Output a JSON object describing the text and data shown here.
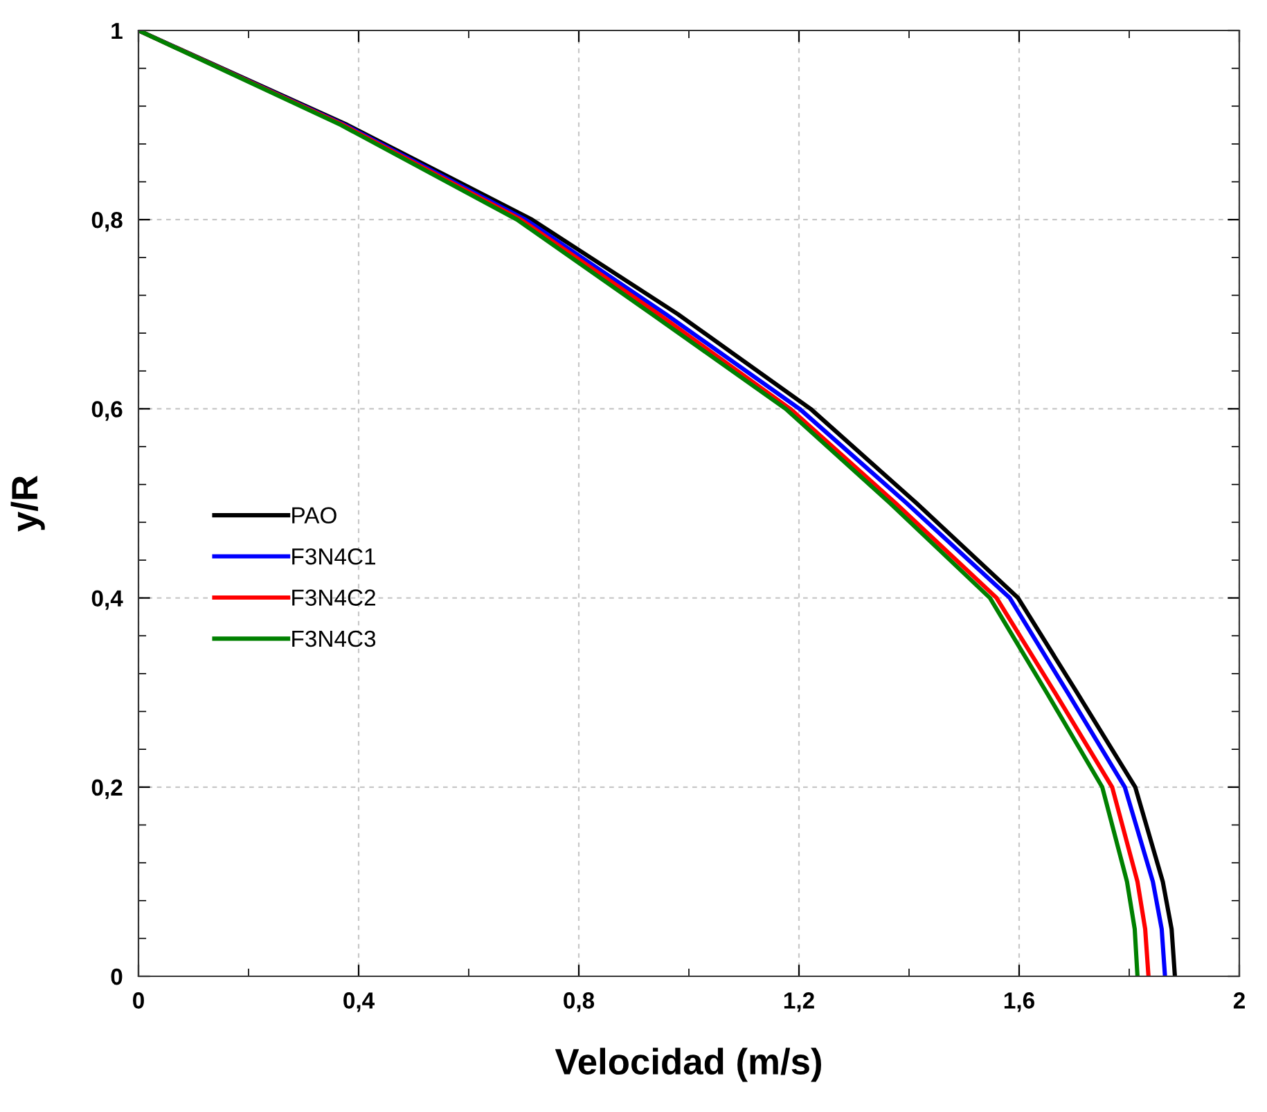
{
  "chart_data": {
    "type": "line",
    "xlabel": "Velocidad (m/s)",
    "ylabel": "y/R",
    "xlim": [
      0,
      2
    ],
    "ylim": [
      0,
      1
    ],
    "xticks": [
      {
        "value": 0,
        "label": "0"
      },
      {
        "value": 0.2,
        "label": null
      },
      {
        "value": 0.4,
        "label": "0,4"
      },
      {
        "value": 0.6,
        "label": null
      },
      {
        "value": 0.8,
        "label": "0,8"
      },
      {
        "value": 1.0,
        "label": null
      },
      {
        "value": 1.2,
        "label": "1,2"
      },
      {
        "value": 1.4,
        "label": null
      },
      {
        "value": 1.6,
        "label": "1,6"
      },
      {
        "value": 1.8,
        "label": null
      },
      {
        "value": 2,
        "label": "2"
      }
    ],
    "yticks": [
      {
        "value": 0,
        "label": "0"
      },
      {
        "value": 0.04,
        "label": null
      },
      {
        "value": 0.08,
        "label": null
      },
      {
        "value": 0.12,
        "label": null
      },
      {
        "value": 0.16,
        "label": null
      },
      {
        "value": 0.2,
        "label": "0,2"
      },
      {
        "value": 0.24,
        "label": null
      },
      {
        "value": 0.28,
        "label": null
      },
      {
        "value": 0.32,
        "label": null
      },
      {
        "value": 0.36,
        "label": null
      },
      {
        "value": 0.4,
        "label": "0,4"
      },
      {
        "value": 0.44,
        "label": null
      },
      {
        "value": 0.48,
        "label": null
      },
      {
        "value": 0.52,
        "label": null
      },
      {
        "value": 0.56,
        "label": null
      },
      {
        "value": 0.6,
        "label": "0,6"
      },
      {
        "value": 0.64,
        "label": null
      },
      {
        "value": 0.68,
        "label": null
      },
      {
        "value": 0.72,
        "label": null
      },
      {
        "value": 0.76,
        "label": null
      },
      {
        "value": 0.8,
        "label": "0,8"
      },
      {
        "value": 0.84,
        "label": null
      },
      {
        "value": 0.88,
        "label": null
      },
      {
        "value": 0.92,
        "label": null
      },
      {
        "value": 0.96,
        "label": null
      },
      {
        "value": 1,
        "label": "1"
      }
    ],
    "grid": true,
    "legend": "left",
    "marker": "none",
    "line_style": "solid",
    "series": [
      {
        "name": "PAO",
        "color": "#000000",
        "x": [
          0,
          0.38,
          0.715,
          0.98,
          1.221,
          1.414,
          1.598,
          1.705,
          1.811,
          1.861,
          1.877,
          1.883
        ],
        "values": [
          1,
          0.9,
          0.8,
          0.7,
          0.6,
          0.5,
          0.4,
          0.3,
          0.2,
          0.1,
          0.05,
          0
        ]
      },
      {
        "name": "F3N4C1",
        "color": "#0000ff",
        "x": [
          0,
          0.375,
          0.703,
          0.958,
          1.201,
          1.396,
          1.583,
          1.688,
          1.792,
          1.843,
          1.859,
          1.865
        ],
        "values": [
          1,
          0.9,
          0.8,
          0.7,
          0.6,
          0.5,
          0.4,
          0.3,
          0.2,
          0.1,
          0.05,
          0
        ]
      },
      {
        "name": "F3N4C2",
        "color": "#ff0000",
        "x": [
          0,
          0.372,
          0.695,
          0.945,
          1.184,
          1.376,
          1.559,
          1.665,
          1.769,
          1.815,
          1.829,
          1.835
        ],
        "values": [
          1,
          0.9,
          0.8,
          0.7,
          0.6,
          0.5,
          0.4,
          0.3,
          0.2,
          0.1,
          0.05,
          0
        ]
      },
      {
        "name": "F3N4C3",
        "color": "#008000",
        "x": [
          0,
          0.368,
          0.688,
          0.933,
          1.176,
          1.366,
          1.547,
          1.65,
          1.751,
          1.796,
          1.81,
          1.815
        ],
        "values": [
          1,
          0.9,
          0.8,
          0.7,
          0.6,
          0.5,
          0.4,
          0.3,
          0.2,
          0.1,
          0.05,
          0
        ]
      }
    ]
  }
}
